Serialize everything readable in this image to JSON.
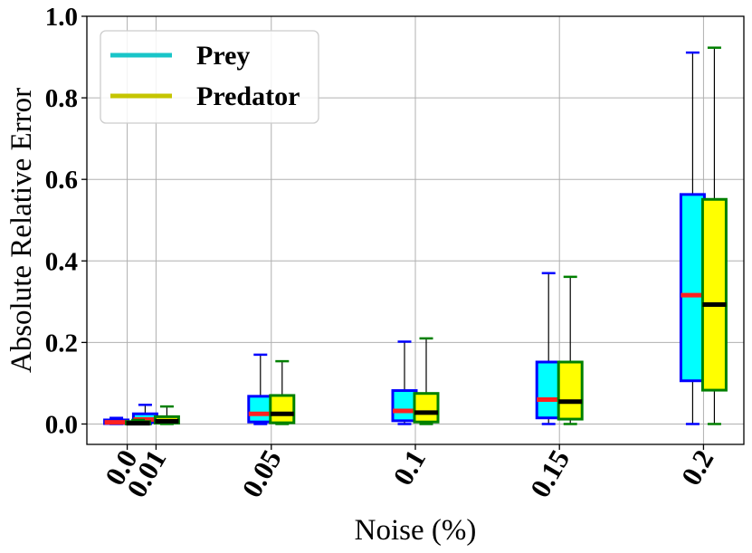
{
  "chart_data": {
    "type": "boxplot",
    "xlabel": "Noise (%)",
    "ylabel": "Absolute Relative Error",
    "ylim": [
      -0.05,
      1.0
    ],
    "yticks": [
      "0.0",
      "0.2",
      "0.4",
      "0.6",
      "0.8",
      "1.0"
    ],
    "categories": [
      "0.0",
      "0.01",
      "0.05",
      "0.1",
      "0.15",
      "0.2"
    ],
    "category_positions": [
      0.0,
      0.01,
      0.05,
      0.1,
      0.15,
      0.2
    ],
    "grid": true,
    "legend_position": "top-left",
    "series": [
      {
        "name": "Prey",
        "legend_color": "#19c5c8",
        "box_fill": "#00ffff",
        "box_edge": "#0000ff",
        "median_color": "#ff2020",
        "boxes": [
          {
            "min": 0.0,
            "q1": 0.001,
            "median": 0.004,
            "q3": 0.01,
            "max": 0.015
          },
          {
            "min": 0.0,
            "q1": 0.004,
            "median": 0.011,
            "q3": 0.025,
            "max": 0.047
          },
          {
            "min": 0.0,
            "q1": 0.005,
            "median": 0.025,
            "q3": 0.068,
            "max": 0.17
          },
          {
            "min": 0.0,
            "q1": 0.008,
            "median": 0.032,
            "q3": 0.082,
            "max": 0.202
          },
          {
            "min": 0.0,
            "q1": 0.015,
            "median": 0.06,
            "q3": 0.152,
            "max": 0.37
          },
          {
            "min": 0.0,
            "q1": 0.106,
            "median": 0.316,
            "q3": 0.563,
            "max": 0.911
          }
        ]
      },
      {
        "name": "Predator",
        "legend_color": "#c5c500",
        "box_fill": "#ffff00",
        "box_edge": "#008000",
        "median_color": "#000000",
        "boxes": [
          {
            "min": 0.0,
            "q1": 0.0,
            "median": 0.002,
            "q3": 0.006,
            "max": 0.01
          },
          {
            "min": 0.0,
            "q1": 0.002,
            "median": 0.007,
            "q3": 0.018,
            "max": 0.043
          },
          {
            "min": 0.0,
            "q1": 0.003,
            "median": 0.025,
            "q3": 0.07,
            "max": 0.154
          },
          {
            "min": 0.0,
            "q1": 0.005,
            "median": 0.028,
            "q3": 0.075,
            "max": 0.21
          },
          {
            "min": 0.0,
            "q1": 0.012,
            "median": 0.055,
            "q3": 0.152,
            "max": 0.361
          },
          {
            "min": 0.0,
            "q1": 0.083,
            "median": 0.293,
            "q3": 0.551,
            "max": 0.923
          }
        ]
      }
    ]
  }
}
